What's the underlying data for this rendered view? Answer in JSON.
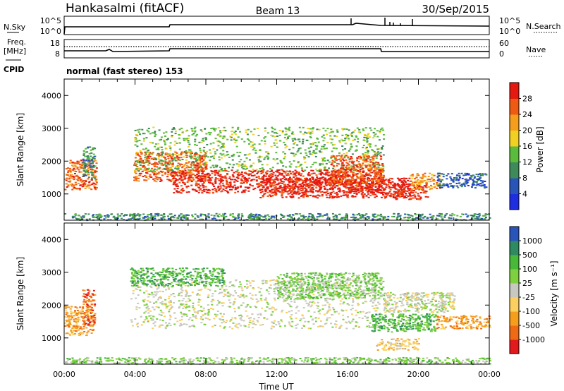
{
  "header": {
    "title": "Hankasalmi (fitACF)",
    "beam": "Beam 13",
    "date": "30/Sep/2015"
  },
  "strip_nsky": {
    "left_label": "N.Sky",
    "right_label": "N.Search",
    "left_ticks": [
      "10^5",
      "10^0"
    ],
    "right_ticks": [
      "10^5",
      "10^0"
    ]
  },
  "strip_freq": {
    "left_label": "Freq.",
    "left_unit": "[MHz]",
    "right_label": "Nave",
    "left_ticks": [
      "18",
      "8"
    ],
    "right_ticks": [
      "60",
      "0"
    ],
    "cpid_label": "CPID",
    "mode_text": "normal (fast stereo) 153"
  },
  "colors": {
    "power": [
      "#1f2de0",
      "#2a55b8",
      "#3f8a5a",
      "#5bbb3c",
      "#f0d020",
      "#f59e1c",
      "#ee5a14",
      "#e41a10"
    ],
    "velocity": [
      "#e31a1c",
      "#ee6a14",
      "#f59e1c",
      "#fbd060",
      "#c8c8c0",
      "#7ed040",
      "#48b838",
      "#2e8a60",
      "#2a55b8"
    ],
    "ground": "#c8c8c0"
  },
  "chart_data": [
    {
      "type": "heatmap",
      "name": "power",
      "ylabel": "Slant Range [km]",
      "x_unit": "hours UT",
      "xlim": [
        0,
        24
      ],
      "ylim": [
        200,
        4500
      ],
      "yticks": [
        "1000",
        "2000",
        "3000",
        "4000"
      ],
      "colorbar": {
        "label": "Power [dB]",
        "tick_labels": [
          "4",
          "8",
          "12",
          "16",
          "20",
          "24",
          "28"
        ],
        "range": [
          0,
          30
        ]
      },
      "bands": [
        {
          "x": [
            0.0,
            1.8
          ],
          "y": [
            1150,
            2050
          ],
          "level": 6
        },
        {
          "x": [
            1.0,
            1.7
          ],
          "y": [
            1500,
            2450
          ],
          "level": 2
        },
        {
          "x": [
            3.9,
            8.0
          ],
          "y": [
            1400,
            2300
          ],
          "level": 6
        },
        {
          "x": [
            3.9,
            18.0
          ],
          "y": [
            1700,
            3050
          ],
          "level": 3
        },
        {
          "x": [
            6.0,
            18.0
          ],
          "y": [
            1050,
            1750
          ],
          "level": 7
        },
        {
          "x": [
            11.0,
            19.5
          ],
          "y": [
            900,
            1500
          ],
          "level": 7
        },
        {
          "x": [
            15.0,
            18.0
          ],
          "y": [
            1300,
            2200
          ],
          "level": 6
        },
        {
          "x": [
            18.5,
            20.5
          ],
          "y": [
            850,
            1300
          ],
          "level": 7
        },
        {
          "x": [
            19.5,
            21.2
          ],
          "y": [
            1150,
            1650
          ],
          "level": 5
        },
        {
          "x": [
            21.0,
            23.8
          ],
          "y": [
            1200,
            1650
          ],
          "level": 1
        },
        {
          "x": [
            0.0,
            24.0
          ],
          "y": [
            220,
            420
          ],
          "level": 2
        }
      ]
    },
    {
      "type": "heatmap",
      "name": "velocity",
      "ylabel": "Slant Range [km]",
      "xlabel": "Time UT",
      "xlim": [
        0,
        24
      ],
      "ylim": [
        200,
        4500
      ],
      "yticks": [
        "1000",
        "2000",
        "3000",
        "4000"
      ],
      "xticks": [
        "00:00",
        "04:00",
        "08:00",
        "12:00",
        "16:00",
        "20:00",
        "00:00"
      ],
      "colorbar": {
        "label": "Velocity [m s⁻¹]",
        "tick_labels": [
          "-1000",
          "-500",
          "-100",
          "-25",
          "25",
          "100",
          "500",
          "1000"
        ]
      },
      "bands": [
        {
          "x": [
            0.0,
            1.6
          ],
          "y": [
            1100,
            2000
          ],
          "level": 2
        },
        {
          "x": [
            1.0,
            1.7
          ],
          "y": [
            1400,
            2500
          ],
          "level": 1
        },
        {
          "x": [
            3.7,
            17.8
          ],
          "y": [
            1300,
            2800
          ],
          "level": 4
        },
        {
          "x": [
            3.7,
            9.0
          ],
          "y": [
            2600,
            3150
          ],
          "level": 6
        },
        {
          "x": [
            12.0,
            18.0
          ],
          "y": [
            2200,
            3000
          ],
          "level": 5
        },
        {
          "x": [
            17.3,
            21.0
          ],
          "y": [
            1200,
            1750
          ],
          "level": 6
        },
        {
          "x": [
            17.6,
            20.0
          ],
          "y": [
            650,
            1000
          ],
          "level": 3
        },
        {
          "x": [
            21.0,
            24.0
          ],
          "y": [
            1300,
            1700
          ],
          "level": 2
        },
        {
          "x": [
            18.0,
            22.0
          ],
          "y": [
            1800,
            2400
          ],
          "level": 4
        },
        {
          "x": [
            0.0,
            24.0
          ],
          "y": [
            220,
            420
          ],
          "level": 5
        }
      ]
    }
  ]
}
